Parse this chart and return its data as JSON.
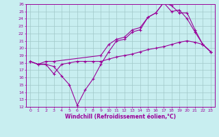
{
  "xlabel": "Windchill (Refroidissement éolien,°C)",
  "bg_color": "#c8eef0",
  "grid_color": "#a0c8c8",
  "line_color": "#990099",
  "xlim": [
    -0.5,
    23.5
  ],
  "ylim": [
    12,
    26
  ],
  "xticks": [
    0,
    1,
    2,
    3,
    4,
    5,
    6,
    7,
    8,
    9,
    10,
    11,
    12,
    13,
    14,
    15,
    16,
    17,
    18,
    19,
    20,
    21,
    22,
    23
  ],
  "yticks": [
    12,
    13,
    14,
    15,
    16,
    17,
    18,
    19,
    20,
    21,
    22,
    23,
    24,
    25,
    26
  ],
  "line1_x": [
    0,
    1,
    2,
    3,
    4,
    5,
    6,
    7,
    8,
    9,
    10,
    11,
    12,
    13,
    14,
    15,
    16,
    17,
    18,
    19,
    20,
    21,
    22,
    23
  ],
  "line1_y": [
    18.2,
    17.8,
    17.8,
    17.5,
    16.2,
    15.0,
    12.2,
    14.3,
    15.8,
    17.8,
    19.5,
    21.0,
    21.2,
    22.2,
    22.5,
    24.2,
    24.8,
    26.2,
    25.0,
    25.2,
    24.0,
    22.2,
    20.5,
    19.5
  ],
  "line2_x": [
    0,
    1,
    2,
    3,
    9,
    10,
    11,
    12,
    13,
    14,
    15,
    16,
    17,
    18,
    19,
    20,
    21,
    22,
    23
  ],
  "line2_y": [
    18.2,
    17.8,
    18.2,
    18.2,
    19.0,
    20.5,
    21.2,
    21.5,
    22.5,
    22.8,
    24.2,
    24.8,
    26.2,
    25.8,
    24.8,
    24.8,
    22.5,
    20.5,
    19.5
  ],
  "line3_x": [
    0,
    1,
    2,
    3,
    4,
    5,
    6,
    7,
    8,
    9,
    10,
    11,
    12,
    13,
    14,
    15,
    16,
    17,
    18,
    19,
    20,
    21,
    22,
    23
  ],
  "line3_y": [
    18.2,
    17.8,
    17.8,
    16.5,
    17.8,
    18.0,
    18.2,
    18.2,
    18.2,
    18.2,
    18.5,
    18.8,
    19.0,
    19.2,
    19.5,
    19.8,
    20.0,
    20.2,
    20.5,
    20.8,
    21.0,
    20.8,
    20.5,
    19.5
  ]
}
